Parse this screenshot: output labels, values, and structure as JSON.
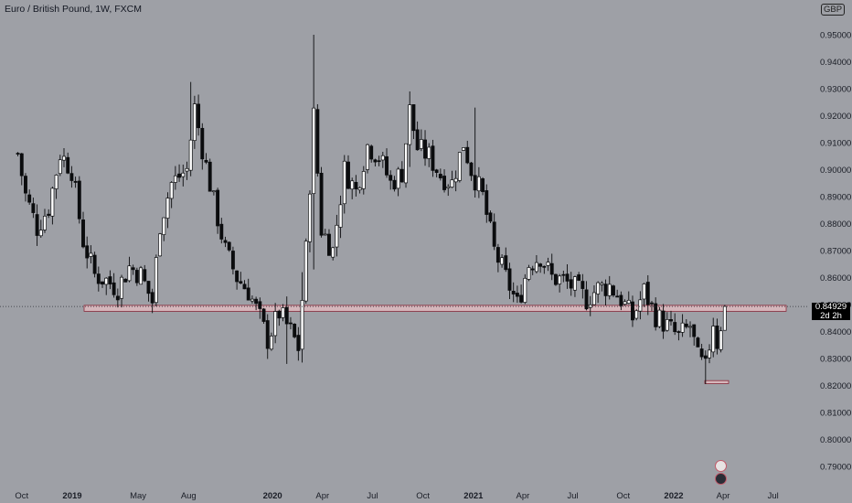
{
  "header": {
    "title": "Euro / British Pound, 1W, FXCM",
    "currency": "GBP",
    "currency_button": "GBP"
  },
  "price_label": {
    "price": "0.84929",
    "countdown": "2d 2h"
  },
  "chart_data": {
    "type": "candlestick",
    "symbol": "EURGBP",
    "interval": "1W",
    "yaxis": {
      "ticks": [
        0.95,
        0.94,
        0.93,
        0.92,
        0.91,
        0.9,
        0.89,
        0.88,
        0.87,
        0.86,
        0.85,
        0.84,
        0.83,
        0.82,
        0.81,
        0.8,
        0.79
      ],
      "tick_labels": [
        "0.95000",
        "0.94000",
        "0.93000",
        "0.92000",
        "0.91000",
        "0.90000",
        "0.89000",
        "0.88000",
        "0.87000",
        "0.86000",
        "0.85000",
        "0.84000",
        "0.83000",
        "0.82000",
        "0.81000",
        "0.80000",
        "0.79000"
      ],
      "range": [
        0.786,
        0.9605
      ],
      "position": "right"
    },
    "xaxis": {
      "tick_labels": [
        "Oct",
        "2019",
        "May",
        "Aug",
        "2020",
        "Apr",
        "Jul",
        "Oct",
        "2021",
        "Apr",
        "Jul",
        "Oct",
        "2022",
        "Apr",
        "Jul"
      ]
    },
    "start": "2018-10-01",
    "end": "2022-04-04",
    "current_price": 0.84929,
    "support_zone": {
      "low": 0.8475,
      "high": 0.8497
    },
    "small_box": {
      "low": 0.8207,
      "high": 0.8218
    },
    "anchors": [
      [
        "2018-09-24",
        0.906
      ],
      [
        "2018-10-08",
        0.8905
      ],
      [
        "2018-10-29",
        0.8785
      ],
      [
        "2018-11-19",
        0.886
      ],
      [
        "2018-12-10",
        0.906
      ],
      [
        "2018-12-31",
        0.9
      ],
      [
        "2019-01-21",
        0.8735
      ],
      [
        "2019-02-11",
        0.861
      ],
      [
        "2019-03-04",
        0.859
      ],
      [
        "2019-03-25",
        0.856
      ],
      [
        "2019-04-15",
        0.864
      ],
      [
        "2019-05-06",
        0.861
      ],
      [
        "2019-05-27",
        0.851
      ],
      [
        "2019-06-10",
        0.88
      ],
      [
        "2019-07-01",
        0.895
      ],
      [
        "2019-07-29",
        0.9
      ],
      [
        "2019-08-12",
        0.923
      ],
      [
        "2019-08-26",
        0.908
      ],
      [
        "2019-09-16",
        0.888
      ],
      [
        "2019-10-07",
        0.87
      ],
      [
        "2019-10-28",
        0.86
      ],
      [
        "2019-11-18",
        0.855
      ],
      [
        "2019-12-09",
        0.845
      ],
      [
        "2019-12-23",
        0.837
      ],
      [
        "2020-01-13",
        0.847
      ],
      [
        "2020-02-03",
        0.84
      ],
      [
        "2020-02-17",
        0.834
      ],
      [
        "2020-03-02",
        0.87
      ],
      [
        "2020-03-16",
        0.92
      ],
      [
        "2020-03-30",
        0.878
      ],
      [
        "2020-04-20",
        0.87
      ],
      [
        "2020-05-11",
        0.9
      ],
      [
        "2020-06-01",
        0.892
      ],
      [
        "2020-06-22",
        0.909
      ],
      [
        "2020-07-13",
        0.905
      ],
      [
        "2020-08-03",
        0.895
      ],
      [
        "2020-08-24",
        0.899
      ],
      [
        "2020-09-07",
        0.922
      ],
      [
        "2020-09-21",
        0.908
      ],
      [
        "2020-10-12",
        0.905
      ],
      [
        "2020-11-02",
        0.898
      ],
      [
        "2020-11-23",
        0.895
      ],
      [
        "2020-12-14",
        0.91
      ],
      [
        "2020-12-28",
        0.9
      ],
      [
        "2021-01-18",
        0.89
      ],
      [
        "2021-02-08",
        0.87
      ],
      [
        "2021-03-01",
        0.86
      ],
      [
        "2021-03-22",
        0.85
      ],
      [
        "2021-04-12",
        0.865
      ],
      [
        "2021-05-03",
        0.868
      ],
      [
        "2021-05-24",
        0.86
      ],
      [
        "2021-06-14",
        0.859
      ],
      [
        "2021-07-05",
        0.856
      ],
      [
        "2021-07-26",
        0.852
      ],
      [
        "2021-08-16",
        0.856
      ],
      [
        "2021-09-06",
        0.857
      ],
      [
        "2021-09-27",
        0.852
      ],
      [
        "2021-10-18",
        0.845
      ],
      [
        "2021-11-08",
        0.855
      ],
      [
        "2021-11-29",
        0.846
      ],
      [
        "2021-12-20",
        0.842
      ],
      [
        "2022-01-10",
        0.838
      ],
      [
        "2022-01-31",
        0.842
      ],
      [
        "2022-02-14",
        0.83
      ],
      [
        "2022-02-28",
        0.826
      ],
      [
        "2022-03-14",
        0.844
      ],
      [
        "2022-03-21",
        0.836
      ],
      [
        "2022-04-04",
        0.8493
      ]
    ],
    "spikes": [
      [
        "2019-08-05",
        0.9325,
        0.911
      ],
      [
        "2020-03-16",
        0.95,
        0.863
      ],
      [
        "2020-01-27",
        0.853,
        0.828
      ],
      [
        "2020-02-24",
        0.862,
        0.8285
      ],
      [
        "2020-09-07",
        0.929,
        0.901
      ],
      [
        "2021-01-04",
        0.923,
        0.895
      ],
      [
        "2022-02-28",
        0.833,
        0.8205
      ]
    ]
  },
  "icons": {
    "flag_top": "event-flag-icon",
    "flag_bottom": "event-globe-icon"
  }
}
